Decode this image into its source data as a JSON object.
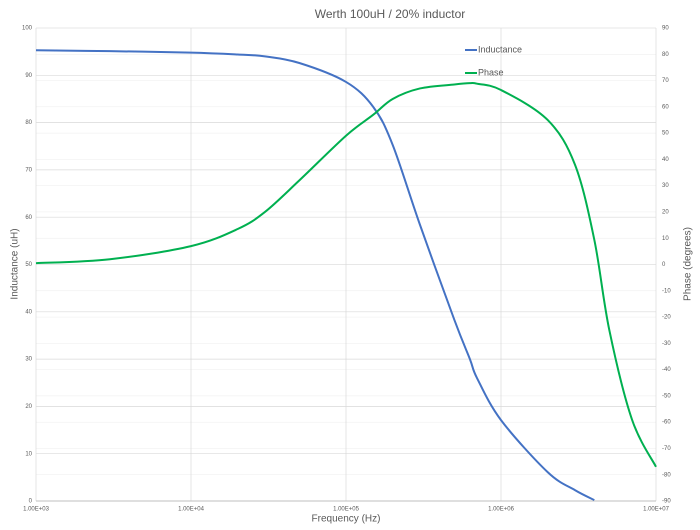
{
  "chart_data": {
    "type": "line",
    "title": "Werth 100uH / 20% inductor",
    "x_label": "Frequency (Hz)",
    "y_label": "Inductance (uH)",
    "y2_label": "Phase (degrees)",
    "xscale": "log",
    "grid": true,
    "legend": "upper right",
    "x": [
      1000,
      3000,
      10000,
      20000,
      30000,
      50000,
      100000,
      150000,
      200000,
      300000,
      500000,
      630000,
      700000,
      1000000,
      2000000,
      3000000,
      4000000,
      5000000,
      7000000,
      10000000
    ],
    "series": [
      {
        "name": "Inductance",
        "color": "#4472c4",
        "values": [
          95.3,
          95.1,
          94.8,
          94.4,
          94.0,
          92.6,
          88.6,
          83.3,
          75.3,
          58.4,
          38.3,
          30,
          26,
          17.1,
          6.1,
          2.3,
          0.2,
          null,
          null,
          null
        ]
      },
      {
        "name": "Phase",
        "color": "#00b050",
        "axis": "y2",
        "values": [
          0.5,
          2,
          7,
          13.5,
          20,
          32,
          49,
          57,
          63,
          67,
          68.5,
          69,
          68.8,
          66.4,
          55,
          38,
          9.4,
          -25,
          -59,
          -77
        ]
      }
    ],
    "xlim": [
      1000,
      10000000
    ],
    "xticks": [
      {
        "value": 1000,
        "label": "1.00E+03"
      },
      {
        "value": 10000,
        "label": "1.00E+04"
      },
      {
        "value": 100000,
        "label": "1.00E+05"
      },
      {
        "value": 1000000,
        "label": "1.00E+06"
      },
      {
        "value": 10000000,
        "label": "1.00E+07"
      }
    ],
    "ylim": [
      0,
      100
    ],
    "yticks": [
      0,
      10,
      20,
      30,
      40,
      50,
      60,
      70,
      80,
      90,
      100
    ],
    "y2lim": [
      -90,
      90
    ],
    "y2ticks": [
      -90,
      -80,
      -70,
      -60,
      -50,
      -40,
      -30,
      -20,
      -10,
      0,
      10,
      20,
      30,
      40,
      50,
      60,
      70,
      80,
      90
    ]
  }
}
